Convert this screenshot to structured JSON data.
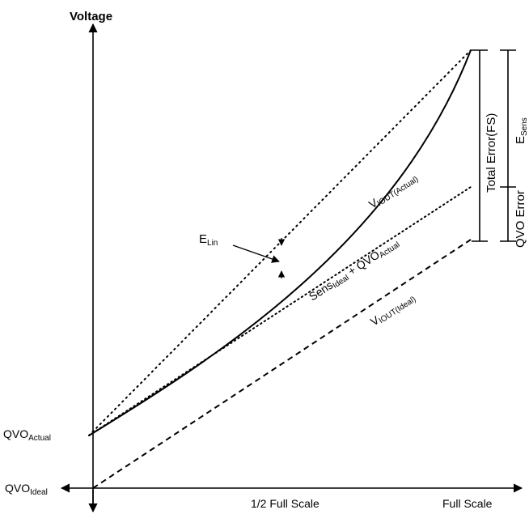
{
  "axes": {
    "y_label": "Voltage",
    "x_tick_half": "1/2 Full Scale",
    "x_tick_full": "Full Scale"
  },
  "intercepts": {
    "qvo_actual_main": "QVO",
    "qvo_actual_sub": "Actual",
    "qvo_ideal_main": "QVO",
    "qvo_ideal_sub": "Ideal"
  },
  "curves": {
    "actual_main": "V",
    "actual_sub": "IOUT(Actual)",
    "ideal_main": "V",
    "ideal_sub": "IOUT(Ideal)",
    "sens_main": "Sens",
    "sens_sub": "Ideal",
    "sens_plus": " + QVO",
    "sens_sub2": "Actual"
  },
  "errors": {
    "lin_main": "E",
    "lin_sub": "Lin",
    "total_error": "Total Error(FS)",
    "sens_main": "E",
    "sens_sub": "Sens",
    "qvo_error": "QVO Error"
  },
  "colors": {
    "ink": "#000000",
    "background": "#ffffff"
  }
}
